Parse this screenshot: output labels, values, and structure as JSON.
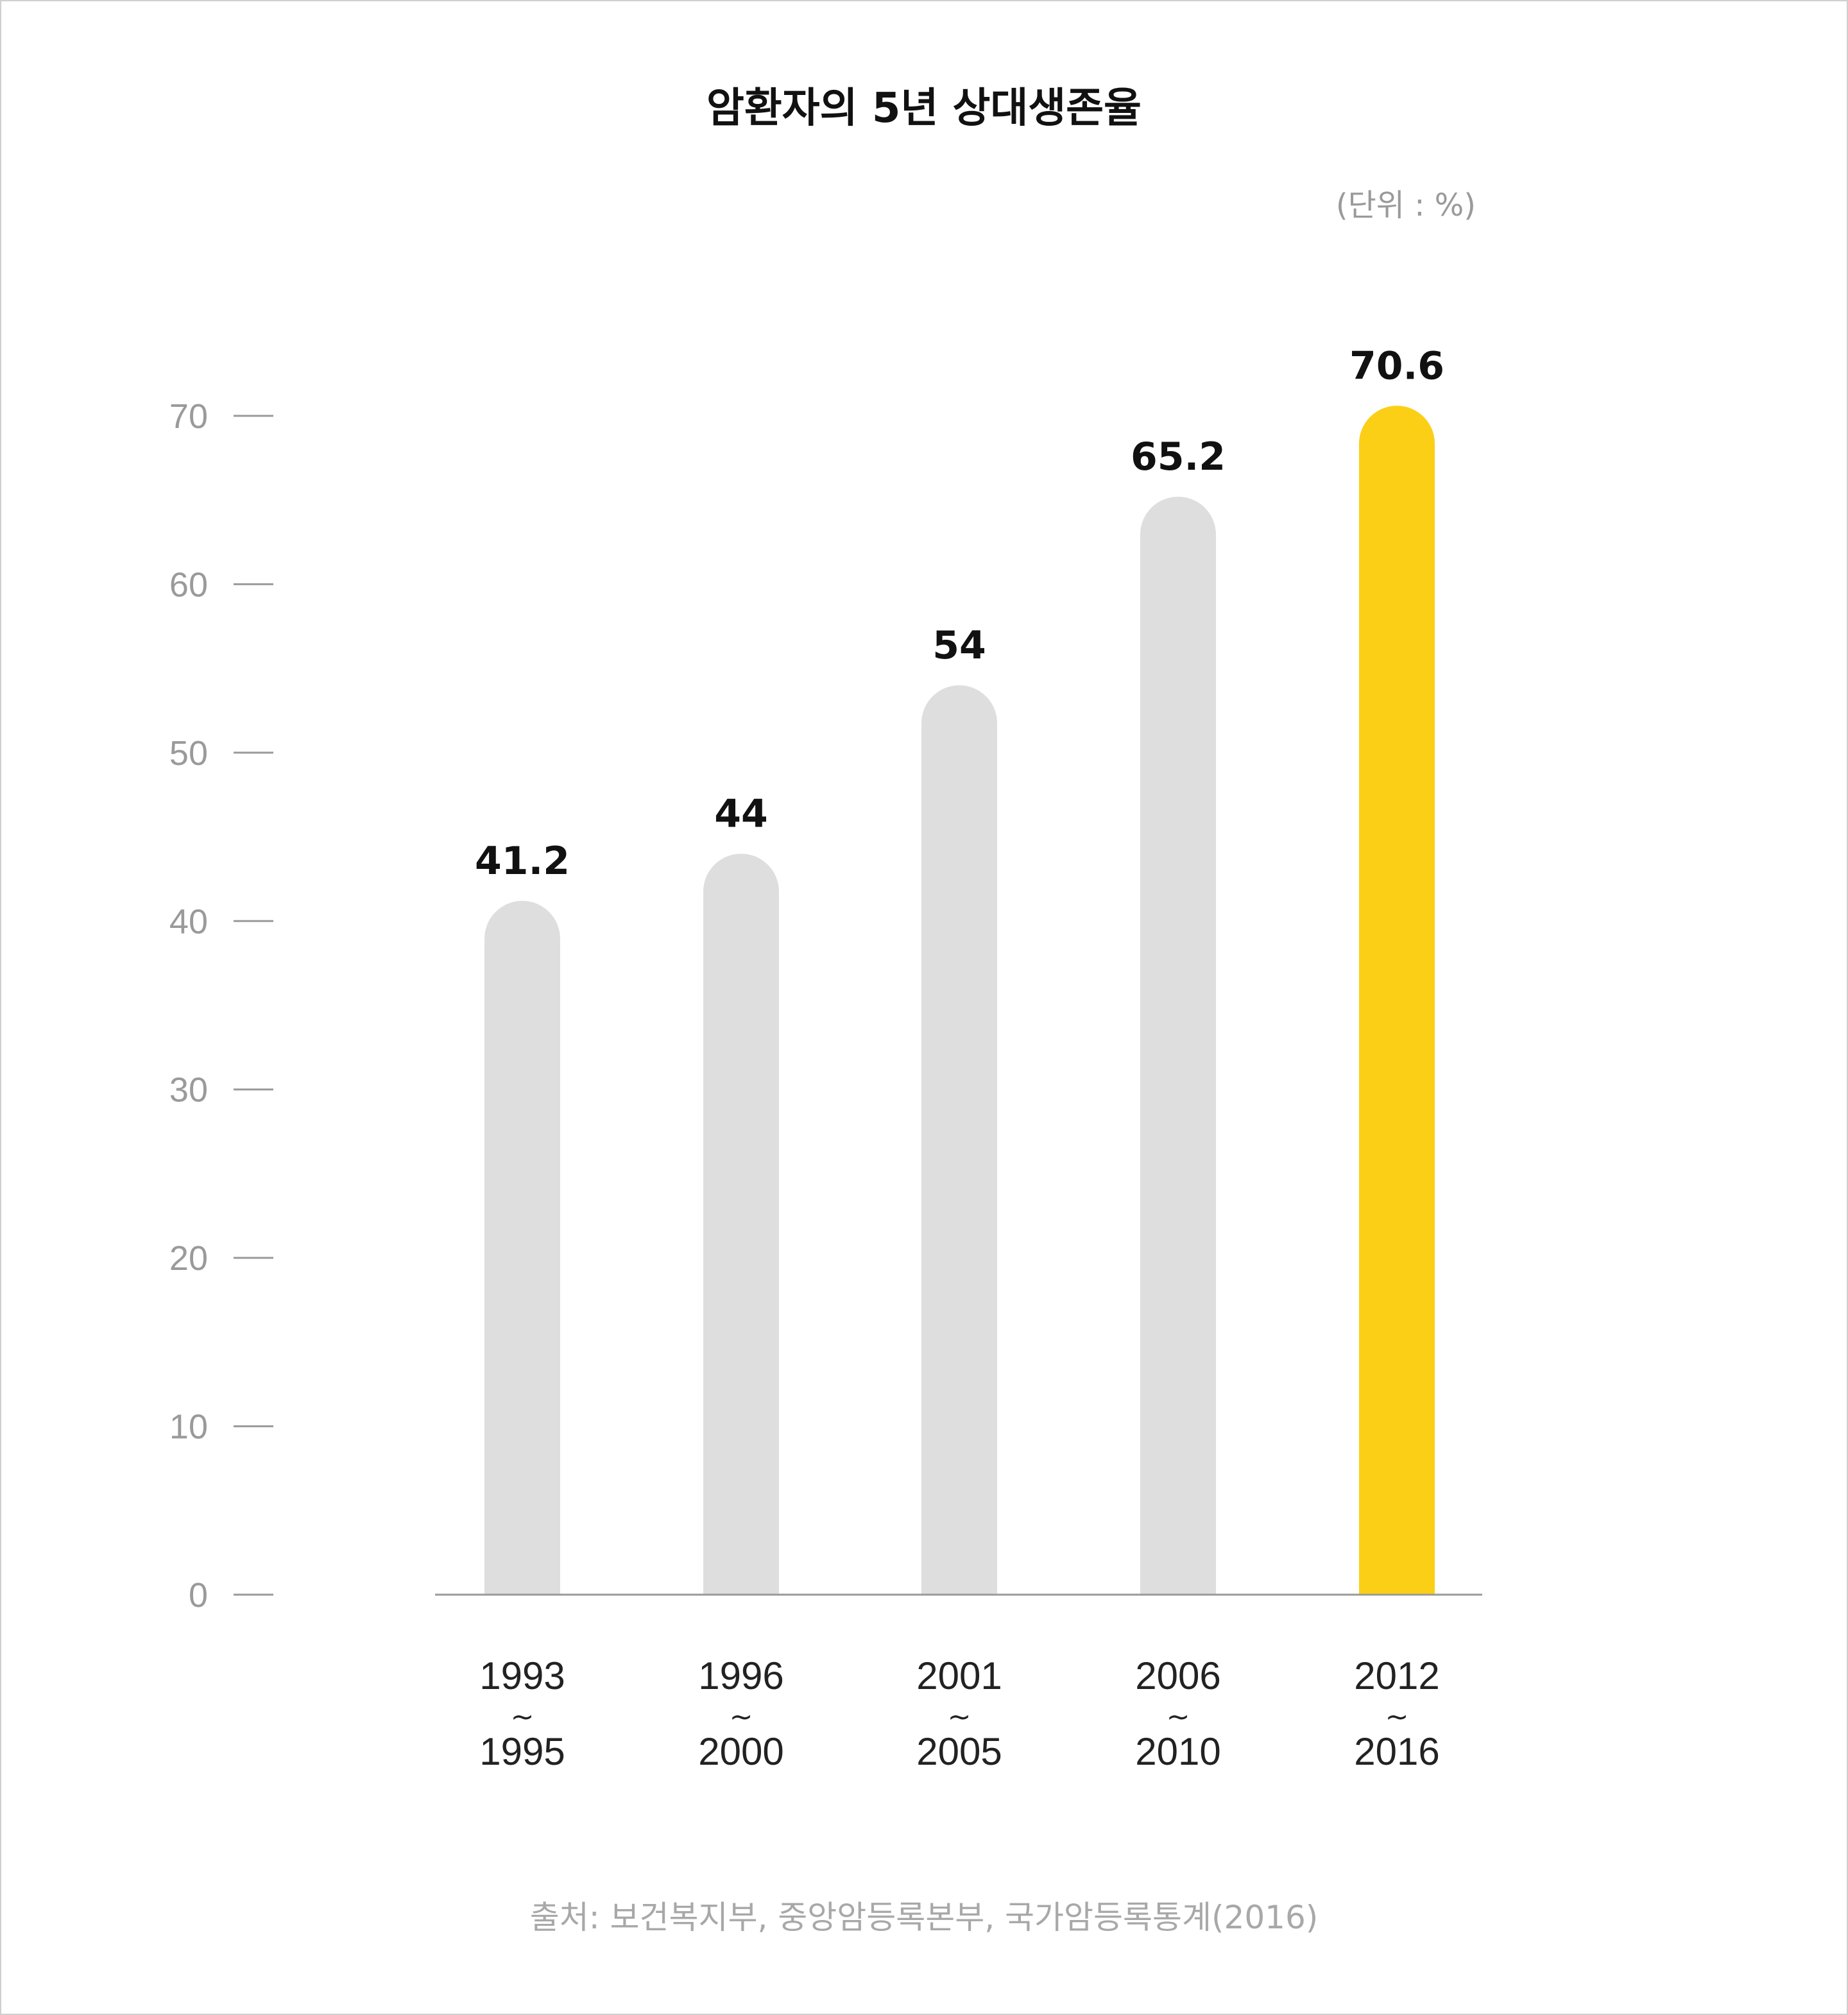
{
  "chart_data": {
    "type": "bar",
    "title": "암환자의 5년 상대생존율",
    "unit_label": "(단위 : %)",
    "categories": [
      {
        "start": "1993",
        "sep": "~",
        "end": "1995"
      },
      {
        "start": "1996",
        "sep": "~",
        "end": "2000"
      },
      {
        "start": "2001",
        "sep": "~",
        "end": "2005"
      },
      {
        "start": "2006",
        "sep": "~",
        "end": "2010"
      },
      {
        "start": "2012",
        "sep": "~",
        "end": "2016"
      }
    ],
    "values": [
      41.2,
      44,
      54,
      65.2,
      70.6
    ],
    "value_labels": [
      "41.2",
      "44",
      "54",
      "65.2",
      "70.6"
    ],
    "ylim": [
      0,
      70
    ],
    "yticks": [
      "0",
      "10",
      "20",
      "30",
      "40",
      "50",
      "60",
      "70"
    ],
    "highlight_index": 4,
    "colors": {
      "bar": "#dedede",
      "highlight": "#fccf17",
      "baseline": "#9a9a9a",
      "tick_mark": "#9a9a9a",
      "border": "#cfcfcf"
    },
    "grid": false,
    "legend": "none"
  },
  "source": "출처: 보건복지부, 중앙암등록본부, 국가암등록통계(2016)"
}
